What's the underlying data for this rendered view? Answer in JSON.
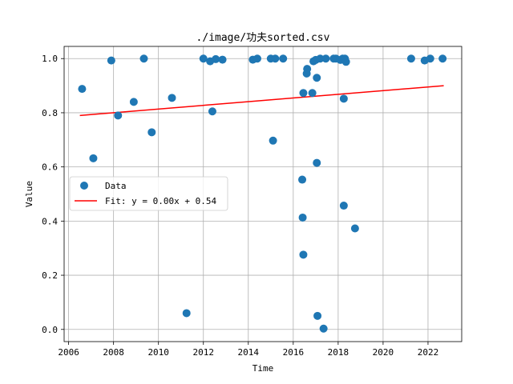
{
  "chart_data": {
    "type": "scatter",
    "title": "./image/功夫sorted.csv",
    "xlabel": "Time",
    "ylabel": "Value",
    "xlim": [
      2005.8,
      2023.5
    ],
    "ylim": [
      -0.045,
      1.045
    ],
    "xticks": [
      2006,
      2008,
      2010,
      2012,
      2014,
      2016,
      2018,
      2020,
      2022
    ],
    "yticks": [
      0.0,
      0.2,
      0.4,
      0.6,
      0.8,
      1.0
    ],
    "ytick_labels": [
      "0.0",
      "0.2",
      "0.4",
      "0.6",
      "0.8",
      "1.0"
    ],
    "grid": true,
    "legend_position": "center-left",
    "series": [
      {
        "name": "Data",
        "kind": "scatter",
        "color": "#1f77b4",
        "points": [
          [
            2006.6,
            0.888
          ],
          [
            2007.1,
            0.632
          ],
          [
            2007.9,
            0.993
          ],
          [
            2008.2,
            0.79
          ],
          [
            2008.9,
            0.84
          ],
          [
            2009.35,
            1.0
          ],
          [
            2009.7,
            0.728
          ],
          [
            2010.6,
            0.855
          ],
          [
            2011.25,
            0.06
          ],
          [
            2012.0,
            1.0
          ],
          [
            2012.3,
            0.99
          ],
          [
            2012.4,
            0.805
          ],
          [
            2012.55,
            0.998
          ],
          [
            2012.85,
            0.996
          ],
          [
            2014.2,
            0.996
          ],
          [
            2014.4,
            1.0
          ],
          [
            2015.0,
            1.0
          ],
          [
            2015.1,
            0.697
          ],
          [
            2015.2,
            1.0
          ],
          [
            2015.55,
            1.0
          ],
          [
            2016.4,
            0.553
          ],
          [
            2016.42,
            0.413
          ],
          [
            2016.45,
            0.276
          ],
          [
            2016.45,
            0.873
          ],
          [
            2016.6,
            0.945
          ],
          [
            2016.62,
            0.962
          ],
          [
            2016.85,
            0.873
          ],
          [
            2016.9,
            0.99
          ],
          [
            2017.0,
            0.995
          ],
          [
            2017.05,
            0.929
          ],
          [
            2017.05,
            0.615
          ],
          [
            2017.08,
            0.05
          ],
          [
            2017.2,
            1.0
          ],
          [
            2017.35,
            0.003
          ],
          [
            2017.45,
            1.0
          ],
          [
            2017.8,
            1.0
          ],
          [
            2017.9,
            1.0
          ],
          [
            2018.1,
            0.995
          ],
          [
            2018.2,
            1.0
          ],
          [
            2018.25,
            0.457
          ],
          [
            2018.25,
            0.852
          ],
          [
            2018.3,
            1.0
          ],
          [
            2018.35,
            0.988
          ],
          [
            2018.75,
            0.373
          ],
          [
            2021.25,
            1.0
          ],
          [
            2021.85,
            0.993
          ],
          [
            2022.1,
            1.0
          ],
          [
            2022.65,
            1.0
          ]
        ]
      },
      {
        "name": "Fit: y = 0.00x + 0.54",
        "kind": "line",
        "color": "#ff0000",
        "points": [
          [
            2006.5,
            0.79
          ],
          [
            2022.7,
            0.9
          ]
        ]
      }
    ]
  }
}
